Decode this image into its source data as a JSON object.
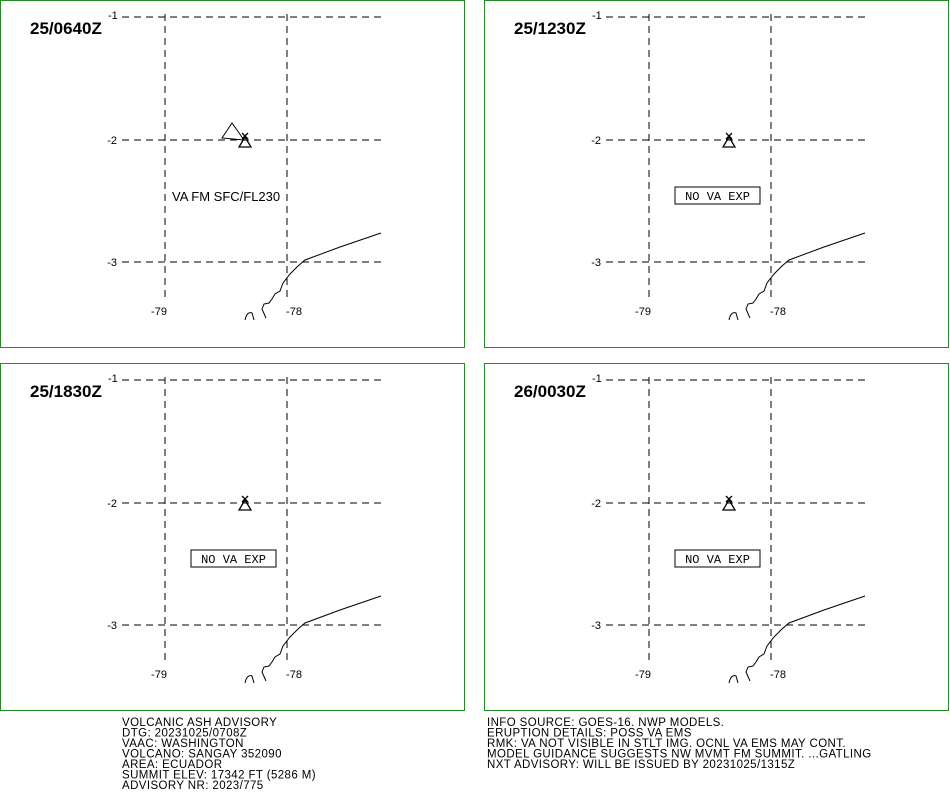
{
  "panels": [
    {
      "time": "25/0640Z",
      "note": "VA FM SFC/FL230",
      "note_boxed": false,
      "ash": true
    },
    {
      "time": "25/1230Z",
      "note": "NO VA EXP",
      "note_boxed": true,
      "ash": false
    },
    {
      "time": "25/1830Z",
      "note": "NO VA EXP",
      "note_boxed": true,
      "ash": false
    },
    {
      "time": "26/0030Z",
      "note": "NO VA EXP",
      "note_boxed": true,
      "ash": false
    }
  ],
  "grid": {
    "lat": [
      "-1",
      "-2",
      "-3"
    ],
    "lon": [
      "-79",
      "-78"
    ]
  },
  "advisory_left": [
    "VOLCANIC ASH ADVISORY",
    "DTG: 20231025/0708Z",
    "VAAC: WASHINGTON",
    "VOLCANO: SANGAY 352090",
    "AREA: ECUADOR",
    "SUMMIT ELEV: 17342 FT (5286 M)",
    "ADVISORY NR: 2023/775"
  ],
  "advisory_right": [
    "INFO SOURCE: GOES-16. NWP MODELS.",
    "ERUPTION DETAILS: POSS VA EMS",
    "RMK: VA NOT VISIBLE IN STLT IMG. OCNL VA EMS MAY CONT.",
    "MODEL GUIDANCE SUGGESTS NW MVMT FM SUMMIT. ...GATLING",
    "NXT ADVISORY: WILL BE ISSUED BY 20231025/1315Z"
  ]
}
